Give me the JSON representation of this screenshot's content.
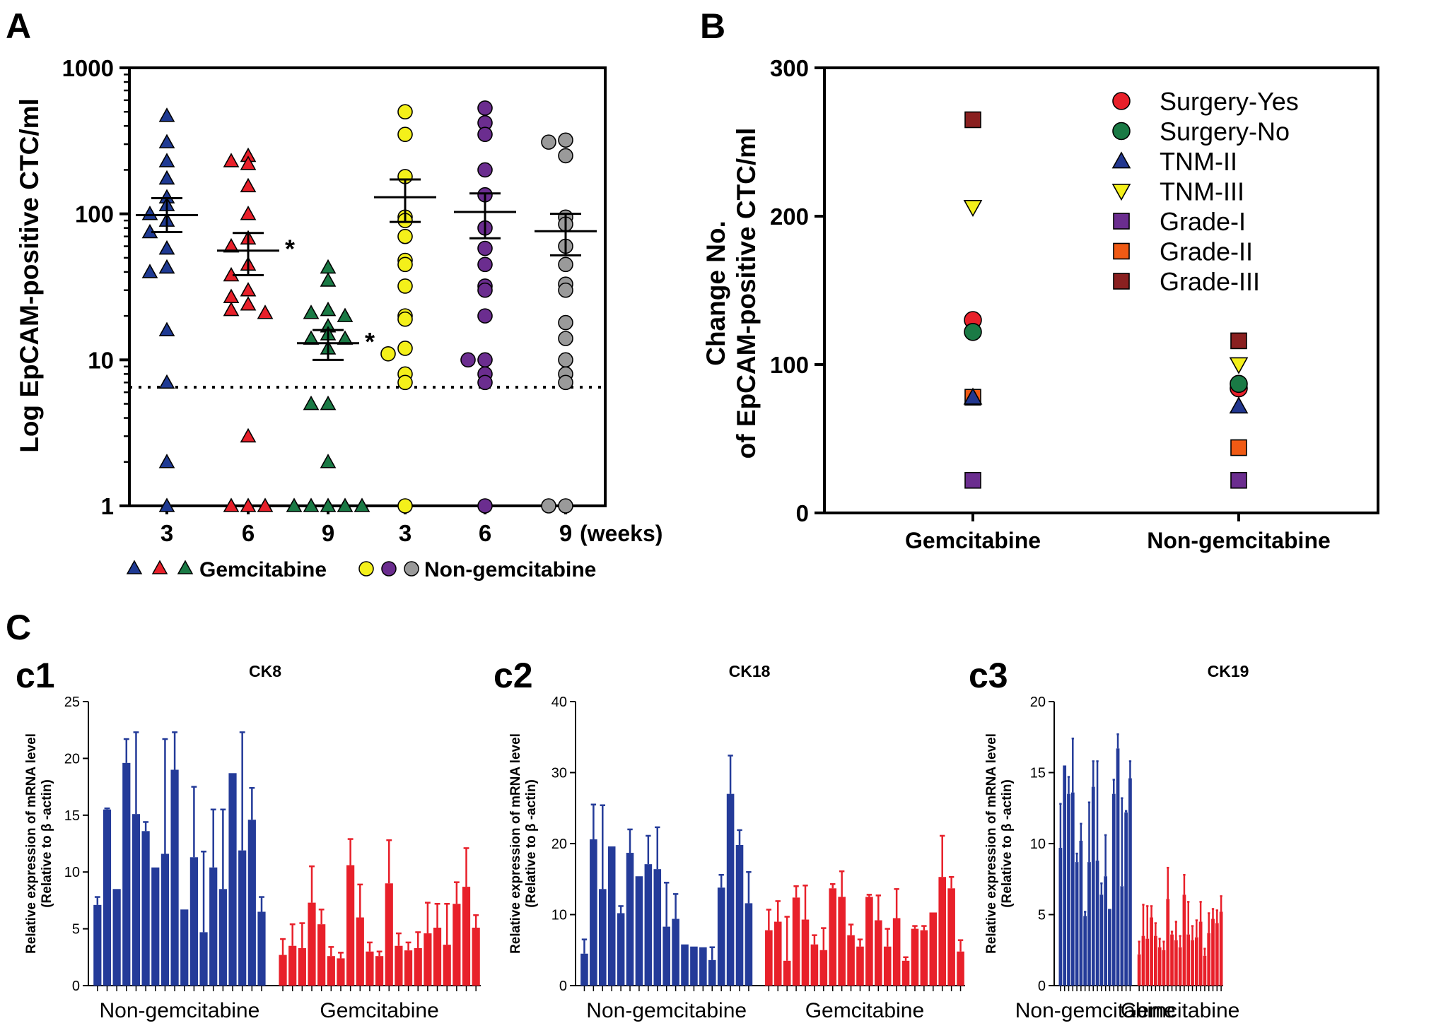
{
  "colors": {
    "blue": "#1f3a93",
    "red": "#e8202a",
    "green": "#1a7a45",
    "yellow": "#f4f01a",
    "purple": "#6b2d8f",
    "gray": "#9a9a9a",
    "orange": "#f05a14",
    "darkred": "#8a2020",
    "navy": "#22378f",
    "barblue": "#243b99",
    "barred": "#e8202a"
  },
  "chart_data": [
    {
      "id": "A",
      "type": "scatter",
      "panel_label": "A",
      "ylabel": "Log EpCAM-positive CTC/ml",
      "yscale": "log",
      "ylim": [
        1,
        1000
      ],
      "yticks": [
        1,
        10,
        100,
        1000
      ],
      "ytick_labels": [
        "1",
        "10",
        "100",
        "1000"
      ],
      "categories": [
        "3",
        "6",
        "9",
        "3",
        "6",
        "9"
      ],
      "x_unit_label": "(weeks)",
      "threshold_line": 6.5,
      "legend": {
        "gem_label": "Gemcitabine",
        "non_label": "Non-gemcitabine"
      },
      "series": [
        {
          "name": "Gemcitabine 3 weeks",
          "group": 0,
          "marker": "triangle",
          "color": "blue",
          "mean": 98,
          "sem_low": 75,
          "sem_high": 128,
          "values": [
            470,
            310,
            230,
            175,
            130,
            115,
            100,
            90,
            75,
            58,
            43,
            40,
            16,
            7,
            2,
            1
          ]
        },
        {
          "name": "Gemcitabine 6 weeks",
          "group": 1,
          "marker": "triangle",
          "color": "red",
          "mean": 56,
          "sem_low": 38,
          "sem_high": 74,
          "star": "*",
          "values": [
            250,
            230,
            220,
            155,
            100,
            68,
            60,
            45,
            38,
            30,
            27,
            24,
            22,
            21,
            3,
            1,
            1,
            1
          ]
        },
        {
          "name": "Gemcitabine 9 weeks",
          "group": 2,
          "marker": "triangle",
          "color": "green",
          "mean": 13,
          "sem_low": 10,
          "sem_high": 16,
          "star": "*",
          "values": [
            43,
            35,
            22,
            21,
            20,
            17,
            15,
            14,
            14,
            12,
            5,
            5,
            2,
            1,
            1,
            1,
            1,
            1
          ]
        },
        {
          "name": "Non-gemcitabine 3 weeks",
          "group": 3,
          "marker": "circle",
          "color": "yellow",
          "mean": 130,
          "sem_low": 88,
          "sem_high": 172,
          "values": [
            500,
            350,
            180,
            95,
            90,
            70,
            48,
            45,
            32,
            20,
            19,
            12,
            11,
            8,
            7,
            1
          ]
        },
        {
          "name": "Non-gemcitabine 6 weeks",
          "group": 4,
          "marker": "circle",
          "color": "purple",
          "mean": 103,
          "sem_low": 68,
          "sem_high": 138,
          "values": [
            530,
            420,
            350,
            200,
            135,
            80,
            58,
            45,
            32,
            30,
            20,
            10,
            10,
            8,
            7,
            1
          ]
        },
        {
          "name": "Non-gemcitabine 9 weeks",
          "group": 5,
          "marker": "circle",
          "color": "gray",
          "mean": 76,
          "sem_low": 52,
          "sem_high": 100,
          "values": [
            320,
            310,
            250,
            95,
            85,
            60,
            45,
            33,
            30,
            18,
            14,
            10,
            8,
            7,
            1,
            1
          ]
        }
      ]
    },
    {
      "id": "B",
      "type": "scatter",
      "panel_label": "B",
      "ylabel_line1": "Change No.",
      "ylabel_line2": "of EpCAM-positive CTC/ml",
      "ylim": [
        0,
        300
      ],
      "yticks": [
        0,
        100,
        200,
        300
      ],
      "ytick_labels": [
        "0",
        "100",
        "200",
        "300"
      ],
      "categories": [
        "Gemcitabine",
        "Non-gemcitabine"
      ],
      "legend_position": "top-right",
      "series": [
        {
          "name": "Surgery-Yes",
          "marker": "circle",
          "color": "red",
          "values": [
            130,
            84
          ]
        },
        {
          "name": "Surgery-No",
          "marker": "circle",
          "color": "green",
          "values": [
            122,
            87
          ]
        },
        {
          "name": "TNM-II",
          "marker": "triangle",
          "color": "navy",
          "values": [
            78,
            72
          ]
        },
        {
          "name": "TNM-III",
          "marker": "triangle-down",
          "color": "yellow",
          "values": [
            206,
            100
          ]
        },
        {
          "name": "Grade-I",
          "marker": "square",
          "color": "purple",
          "values": [
            22,
            22
          ]
        },
        {
          "name": "Grade-II",
          "marker": "square",
          "color": "orange",
          "values": [
            78,
            44
          ]
        },
        {
          "name": "Grade-III",
          "marker": "square",
          "color": "darkred",
          "values": [
            265,
            116
          ]
        }
      ]
    },
    {
      "id": "c1",
      "type": "bar",
      "panel_label": "c1",
      "section_label": "C",
      "title": "CK8",
      "ylabel_line1": "Relative expression of mRNA level",
      "ylabel_line2": "(Relative to β -actin)",
      "ylim": [
        0,
        25
      ],
      "yticks": [
        0,
        5,
        10,
        15,
        20,
        25
      ],
      "ytick_labels": [
        "0",
        "5",
        "10",
        "15",
        "20",
        "25"
      ],
      "groups": [
        "Non-gemcitabine",
        "Gemcitabine"
      ],
      "series": [
        {
          "name": "Non-gemcitabine",
          "color": "barblue",
          "values": [
            7.1,
            15.5,
            8.5,
            19.6,
            15.1,
            13.6,
            10.4,
            11.6,
            19.0,
            6.7,
            11.3,
            4.7,
            10.4,
            8.5,
            18.7,
            11.9,
            14.6,
            6.5
          ],
          "errors": [
            0.7,
            0.1,
            0,
            2.1,
            7.2,
            0.8,
            0,
            10.1,
            3.3,
            0,
            6.2,
            7.1,
            5.1,
            7.0,
            0,
            10.4,
            2.8,
            1.3
          ]
        },
        {
          "name": "Gemcitabine",
          "color": "barred",
          "values": [
            2.7,
            3.5,
            3.3,
            7.3,
            5.4,
            2.6,
            2.4,
            10.6,
            6.0,
            3.0,
            2.6,
            9.0,
            3.5,
            3.1,
            3.3,
            4.6,
            5.1,
            3.6,
            7.2,
            8.7,
            5.1
          ],
          "errors": [
            1.4,
            1.9,
            2.2,
            3.2,
            1.3,
            0.8,
            0.5,
            2.3,
            2.9,
            0.8,
            0.4,
            3.8,
            1.1,
            0.7,
            1.4,
            2.7,
            2.1,
            3.6,
            1.9,
            3.4,
            1.1
          ]
        }
      ]
    },
    {
      "id": "c2",
      "type": "bar",
      "panel_label": "c2",
      "title": "CK18",
      "ylabel_line1": "Relative expression of mRNA level",
      "ylabel_line2": "(Relative to β -actin)",
      "ylim": [
        0,
        40
      ],
      "yticks": [
        0,
        10,
        20,
        30,
        40
      ],
      "ytick_labels": [
        "0",
        "10",
        "20",
        "30",
        "40"
      ],
      "groups": [
        "Non-gemcitabine",
        "Gemcitabine"
      ],
      "series": [
        {
          "name": "Non-gemcitabine",
          "color": "barblue",
          "values": [
            4.5,
            20.6,
            13.6,
            19.6,
            10.2,
            18.7,
            15.4,
            17.1,
            16.4,
            8.3,
            9.4,
            5.8,
            5.5,
            5.4,
            3.6,
            13.8,
            27.0,
            19.8,
            11.6
          ],
          "errors": [
            2.0,
            4.9,
            11.8,
            0,
            1.0,
            3.3,
            0,
            4.0,
            5.9,
            6.2,
            3.5,
            0,
            0,
            0,
            1.8,
            1.8,
            5.4,
            2.1,
            4.4
          ]
        },
        {
          "name": "Gemcitabine",
          "color": "barred",
          "values": [
            7.8,
            9.0,
            3.5,
            12.4,
            9.3,
            5.8,
            5.0,
            13.7,
            12.5,
            7.1,
            5.5,
            12.5,
            9.2,
            5.5,
            9.5,
            3.5,
            8.0,
            7.8,
            10.3,
            15.3,
            13.7,
            4.8
          ],
          "errors": [
            2.9,
            2.9,
            6.2,
            1.6,
            4.8,
            1.3,
            3.1,
            0.6,
            3.6,
            1.5,
            1.0,
            0.3,
            3.5,
            2.5,
            4.1,
            0.5,
            0.4,
            0.6,
            0,
            5.8,
            1.6,
            1.6
          ]
        }
      ]
    },
    {
      "id": "c3",
      "type": "bar",
      "panel_label": "c3",
      "title": "CK19",
      "ylabel_line1": "Relative expression of mRNA level",
      "ylabel_line2": "(Relative to β -actin)",
      "ylim": [
        0,
        20
      ],
      "yticks": [
        0,
        5,
        10,
        15,
        20
      ],
      "ytick_labels": [
        "0",
        "5",
        "10",
        "15",
        "20"
      ],
      "groups": [
        "Non-gemcitabine",
        "Gemcitabine"
      ],
      "series": [
        {
          "name": "Non-gemcitabine",
          "color": "barblue",
          "values": [
            9.7,
            15.5,
            13.5,
            13.6,
            8.7,
            10.2,
            4.9,
            8.7,
            14.0,
            8.8,
            6.4,
            7.7,
            5.4,
            13.5,
            16.7,
            7.0,
            12.2,
            14.6
          ],
          "errors": [
            3.1,
            0,
            1.2,
            3.8,
            0.6,
            1.2,
            0.3,
            4.2,
            1.8,
            7.0,
            0.8,
            2.9,
            0,
            1.0,
            1.0,
            6.2,
            0.1,
            1.2
          ]
        },
        {
          "name": "Gemcitabine",
          "color": "barred",
          "values": [
            2.2,
            3.5,
            3.3,
            4.8,
            3.5,
            2.7,
            2.5,
            6.1,
            3.6,
            3.2,
            2.7,
            6.4,
            3.6,
            3.2,
            3.4,
            4.5,
            2.1,
            3.7,
            4.7,
            4.4,
            5.2
          ],
          "errors": [
            0.9,
            2.2,
            2.3,
            0.8,
            0.9,
            0.6,
            0.6,
            2.2,
            0.2,
            1.3,
            0.8,
            1.4,
            2.3,
            1.0,
            1.2,
            1.4,
            0.5,
            1.4,
            0.7,
            0.9,
            1.1
          ]
        }
      ]
    }
  ]
}
